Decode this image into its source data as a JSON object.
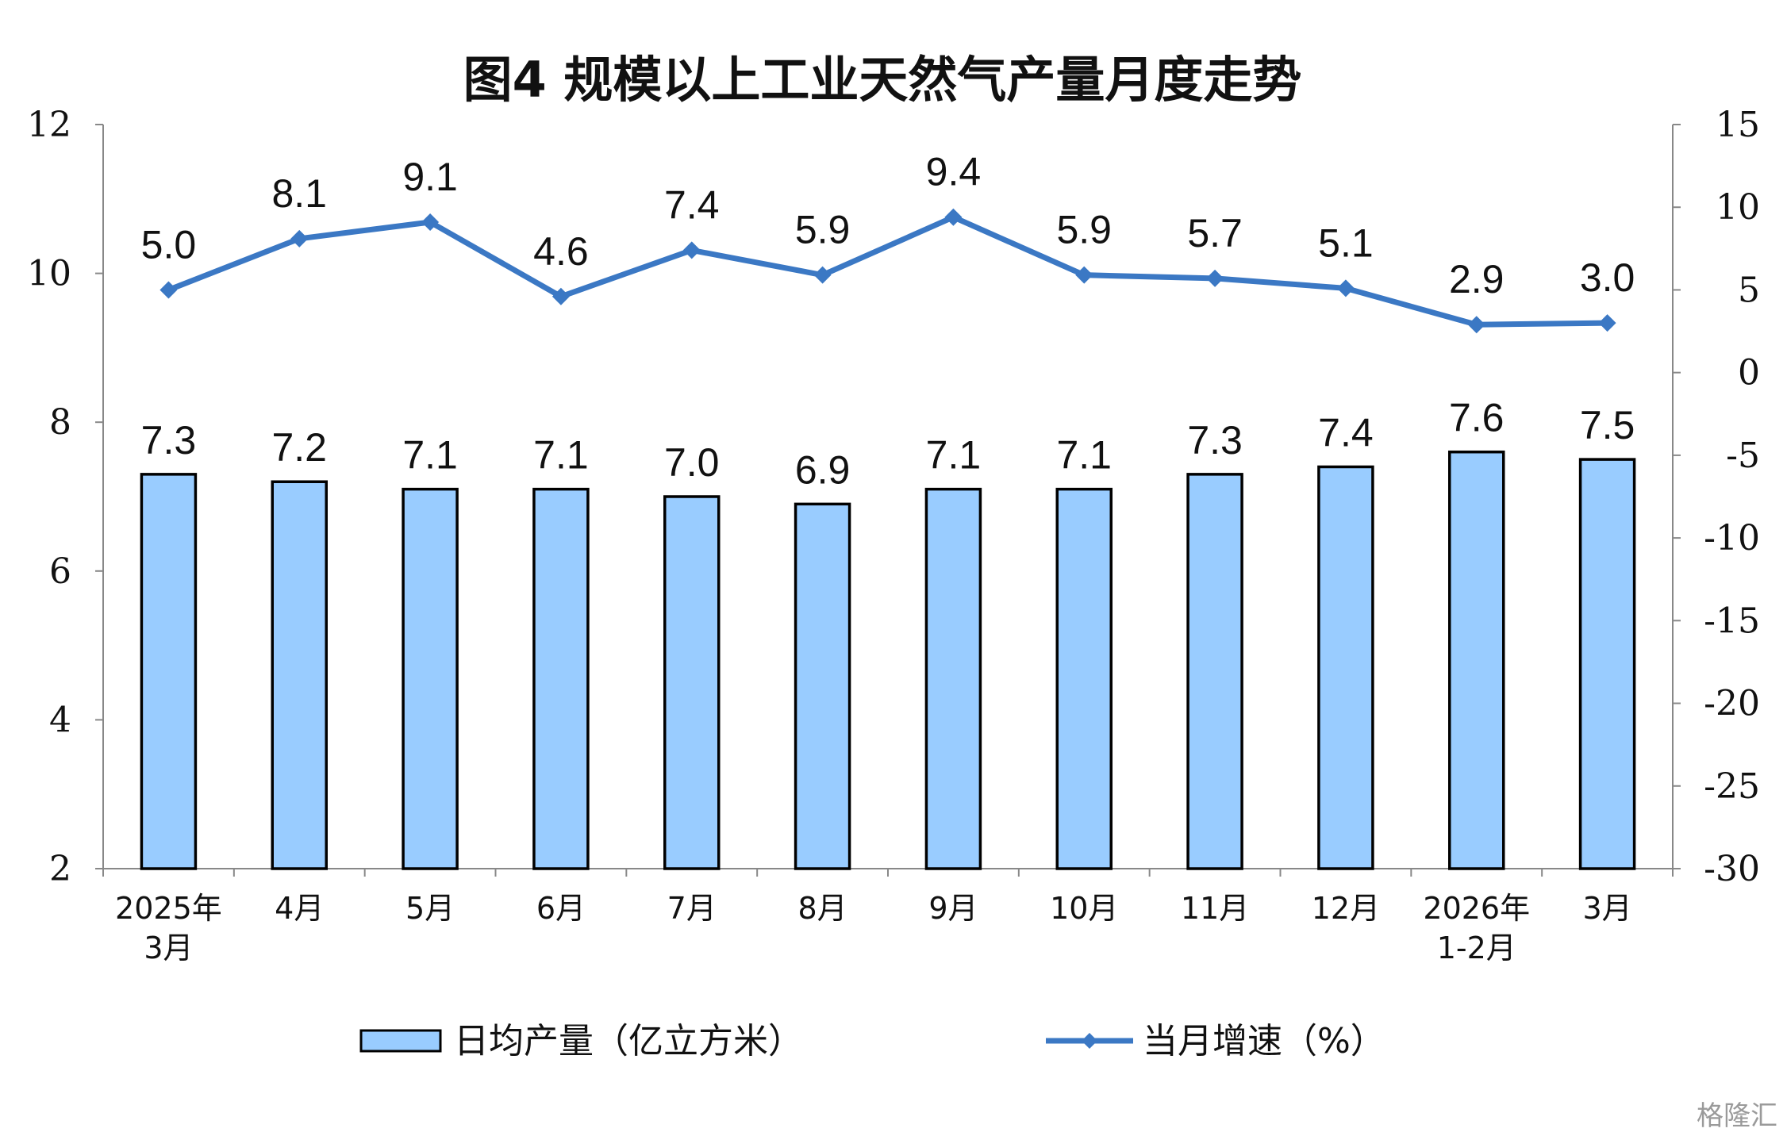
{
  "chart_data": {
    "type": "bar",
    "title": "图4  规模以上工业天然气产量月度走势",
    "categories": [
      [
        "2025年",
        "3月"
      ],
      [
        "4月"
      ],
      [
        "5月"
      ],
      [
        "6月"
      ],
      [
        "7月"
      ],
      [
        "8月"
      ],
      [
        "9月"
      ],
      [
        "10月"
      ],
      [
        "11月"
      ],
      [
        "12月"
      ],
      [
        "2026年",
        "1-2月"
      ],
      [
        "3月"
      ]
    ],
    "series": [
      {
        "name": "日均产量（亿立方米）",
        "type": "bar",
        "axis": "left",
        "color": "#99ccff",
        "values": [
          7.3,
          7.2,
          7.1,
          7.1,
          7.0,
          6.9,
          7.1,
          7.1,
          7.3,
          7.4,
          7.6,
          7.5
        ],
        "labels": [
          "7.3",
          "7.2",
          "7.1",
          "7.1",
          "7.0",
          "6.9",
          "7.1",
          "7.1",
          "7.3",
          "7.4",
          "7.6",
          "7.5"
        ]
      },
      {
        "name": "当月增速（%）",
        "type": "line",
        "axis": "right",
        "color": "#3b78c4",
        "marker": "diamond",
        "values": [
          5.0,
          8.1,
          9.1,
          4.6,
          7.4,
          5.9,
          9.4,
          5.9,
          5.7,
          5.1,
          2.9,
          3.0
        ],
        "labels": [
          "5.0",
          "8.1",
          "9.1",
          "4.6",
          "7.4",
          "5.9",
          "9.4",
          "5.9",
          "5.7",
          "5.1",
          "2.9",
          "3.0"
        ]
      }
    ],
    "y_left": {
      "min": 2,
      "max": 12,
      "ticks": [
        "2",
        "4",
        "6",
        "8",
        "10",
        "12"
      ]
    },
    "y_right": {
      "min": -30,
      "max": 15,
      "ticks": [
        "-30",
        "-25",
        "-20",
        "-15",
        "-10",
        "-5",
        "0",
        "5",
        "10",
        "15"
      ]
    },
    "grid": false,
    "legend_position": "bottom"
  },
  "watermark": "格隆汇"
}
